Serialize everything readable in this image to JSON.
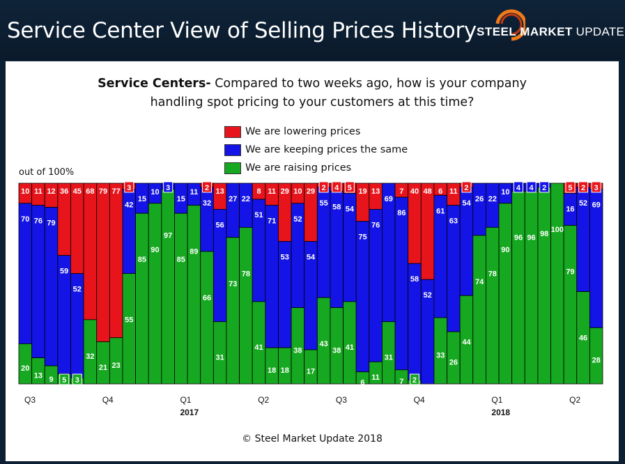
{
  "header": {
    "title": "Service Center View of Selling Prices History",
    "logo_bold": "STEEL MARKET",
    "logo_thin": "UPDATE"
  },
  "question": {
    "bold": "Service Centers-",
    "line1": " Compared to two weeks ago, how is your company",
    "line2": "handling spot pricing to your customers at this time?"
  },
  "legend": [
    {
      "label": "We are lowering prices",
      "color": "#e8141b"
    },
    {
      "label": "We are keeping prices the same",
      "color": "#1414e6"
    },
    {
      "label": "We are raising prices",
      "color": "#16a820"
    }
  ],
  "y_axis_note": "out of 100%",
  "copyright": "© Steel Market Update 2018",
  "chart_data": {
    "type": "bar",
    "stacked": true,
    "ylim": [
      0,
      100
    ],
    "series": [
      {
        "name": "We are raising prices",
        "color": "#16a820",
        "values": [
          20,
          13,
          9,
          5,
          3,
          32,
          21,
          23,
          55,
          85,
          90,
          97,
          85,
          89,
          66,
          31,
          73,
          78,
          41,
          18,
          18,
          38,
          17,
          43,
          38,
          41,
          6,
          11,
          31,
          7,
          2,
          0,
          33,
          26,
          44,
          74,
          78,
          90,
          96,
          96,
          98,
          100,
          79,
          46,
          28
        ]
      },
      {
        "name": "We are keeping prices the same",
        "color": "#1414e6",
        "values": [
          70,
          76,
          79,
          59,
          52,
          0,
          0,
          0,
          42,
          15,
          10,
          3,
          15,
          11,
          32,
          56,
          27,
          22,
          51,
          71,
          53,
          52,
          54,
          55,
          58,
          54,
          75,
          76,
          69,
          86,
          58,
          52,
          61,
          63,
          54,
          26,
          22,
          10,
          4,
          4,
          2,
          0,
          16,
          52,
          69
        ]
      },
      {
        "name": "We are lowering prices",
        "color": "#e8141b",
        "values": [
          10,
          11,
          12,
          36,
          45,
          68,
          79,
          77,
          3,
          0,
          0,
          0,
          0,
          0,
          2,
          13,
          0,
          0,
          8,
          11,
          29,
          10,
          29,
          2,
          4,
          5,
          19,
          13,
          0,
          7,
          40,
          48,
          6,
          11,
          2,
          0,
          0,
          0,
          0,
          0,
          0,
          0,
          5,
          2,
          3
        ]
      }
    ],
    "labels": {
      "raise": [
        "20",
        "13",
        "9",
        "5",
        "3",
        "32",
        "21",
        "23",
        "55",
        "85",
        "90",
        "97",
        "85",
        "89",
        "66",
        "31",
        "73",
        "78",
        "41",
        "18",
        "18",
        "38",
        "17",
        "43",
        "38",
        "41",
        "6",
        "11",
        "31",
        "7",
        "2",
        "",
        "33",
        "26",
        "44",
        "74",
        "78",
        "90",
        "96",
        "96",
        "98",
        "100",
        "79",
        "46",
        "28"
      ],
      "keep": [
        "70",
        "76",
        "79",
        "59",
        "52",
        "",
        "",
        "",
        "42",
        "15",
        "10",
        "3",
        "15",
        "11",
        "32",
        "56",
        "27",
        "22",
        "51",
        "71",
        "53",
        "52",
        "54",
        "55",
        "58",
        "54",
        "75",
        "76",
        "69",
        "86",
        "58",
        "52",
        "61",
        "63",
        "54",
        "26",
        "22",
        "10",
        "4",
        "4",
        "2",
        "",
        "16",
        "52",
        "69"
      ],
      "lower": [
        "10",
        "11",
        "12",
        "36",
        "45",
        "68",
        "79",
        "77",
        "3",
        "",
        "",
        "",
        "",
        "",
        "2",
        "13",
        "",
        "",
        "8",
        "11",
        "29",
        "10",
        "29",
        "2",
        "4",
        "5",
        "19",
        "13",
        "",
        "7",
        "40",
        "48",
        "6",
        "11",
        "2",
        "",
        "",
        "",
        "",
        "",
        "",
        "",
        "5",
        "2",
        "3"
      ]
    },
    "x_ticks": [
      {
        "label": "Q3",
        "bar": 0
      },
      {
        "label": "Q4",
        "bar": 6
      },
      {
        "label": "Q1",
        "bar": 12
      },
      {
        "label": "Q2",
        "bar": 18
      },
      {
        "label": "Q3",
        "bar": 24
      },
      {
        "label": "Q4",
        "bar": 30
      },
      {
        "label": "Q1",
        "bar": 36
      },
      {
        "label": "Q2",
        "bar": 42
      }
    ],
    "years": [
      {
        "label": "2017",
        "bar": 12
      },
      {
        "label": "2018",
        "bar": 36
      }
    ]
  }
}
